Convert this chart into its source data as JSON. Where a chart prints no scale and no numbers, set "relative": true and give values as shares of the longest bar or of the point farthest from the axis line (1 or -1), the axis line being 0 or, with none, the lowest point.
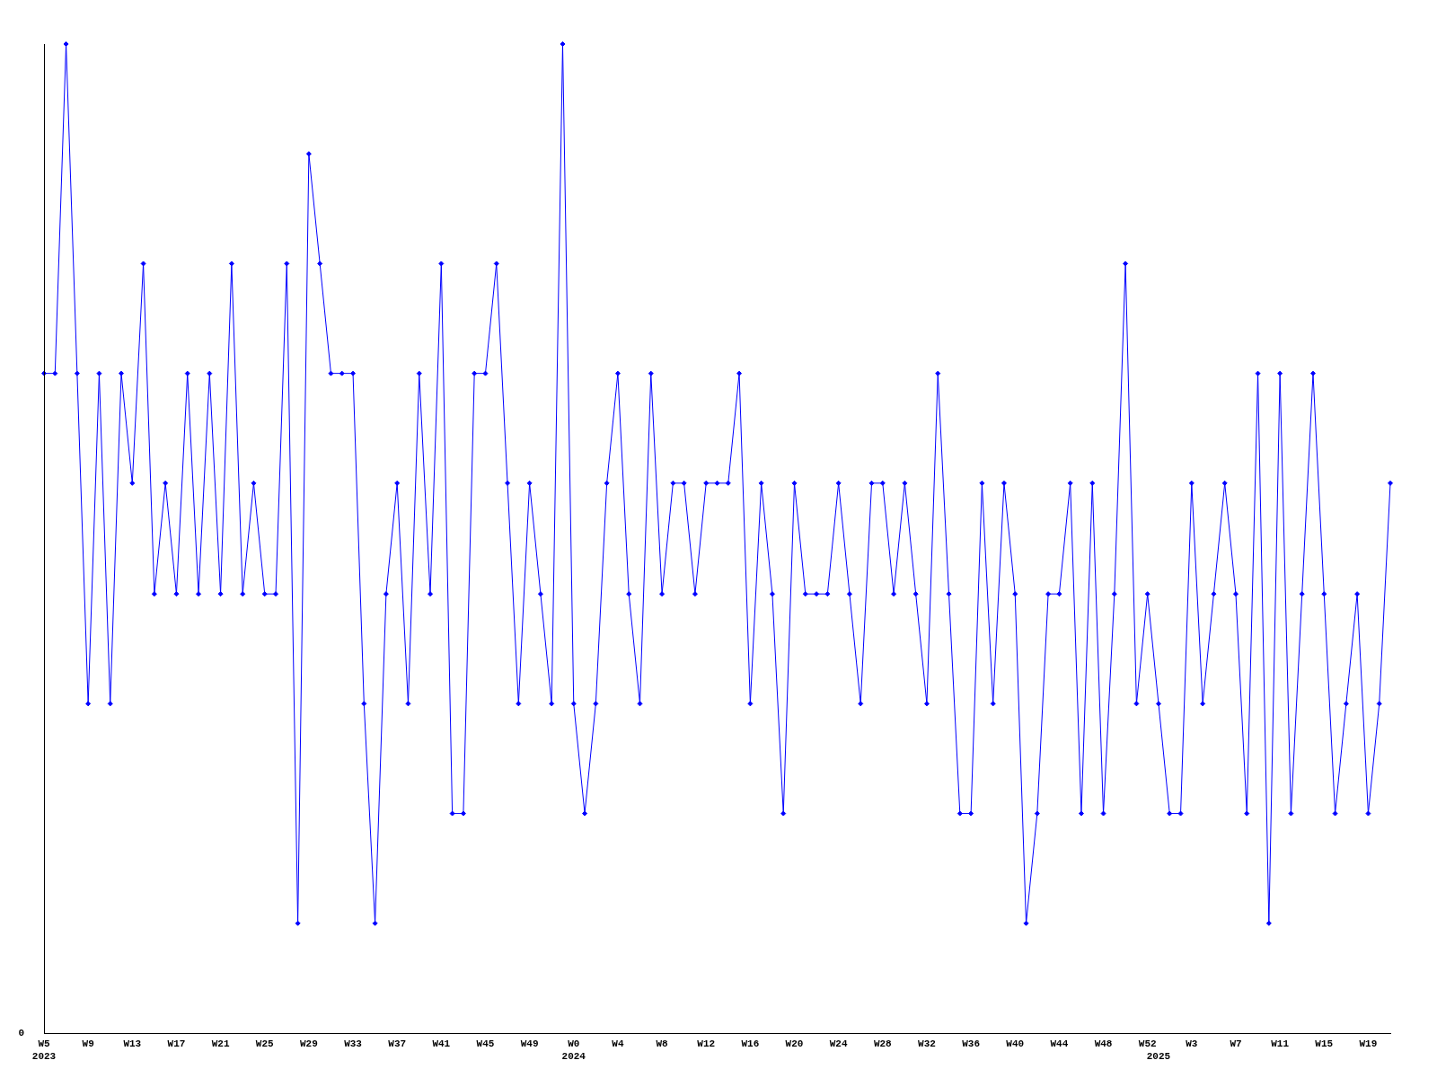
{
  "chart_data": {
    "type": "line",
    "relative": true,
    "color": "#0000ff",
    "marker": "diamond",
    "categories": [
      "W5\n2023",
      null,
      null,
      null,
      "W9",
      null,
      null,
      null,
      "W13",
      null,
      null,
      null,
      "W17",
      null,
      null,
      null,
      "W21",
      null,
      null,
      null,
      "W25",
      null,
      null,
      null,
      "W29",
      null,
      null,
      null,
      "W33",
      null,
      null,
      null,
      "W37",
      null,
      null,
      null,
      "W41",
      null,
      null,
      null,
      "W45",
      null,
      null,
      null,
      "W49",
      null,
      null,
      null,
      "W0\n2024",
      null,
      null,
      null,
      "W4",
      null,
      null,
      null,
      "W8",
      null,
      null,
      null,
      "W12",
      null,
      null,
      null,
      "W16",
      null,
      null,
      null,
      "W20",
      null,
      null,
      null,
      "W24",
      null,
      null,
      null,
      "W28",
      null,
      null,
      null,
      "W32",
      null,
      null,
      null,
      "W36",
      null,
      null,
      null,
      "W40",
      null,
      null,
      null,
      "W44",
      null,
      null,
      null,
      "W48",
      null,
      null,
      null,
      "W52",
      "\n2025",
      null,
      null,
      "W3",
      null,
      null,
      null,
      "W7",
      null,
      null,
      null,
      "W11",
      null,
      null,
      null,
      "W15",
      null,
      null,
      null,
      "W19",
      null,
      null
    ],
    "values": [
      0.667,
      0.667,
      1,
      0.667,
      0.333,
      0.667,
      0.333,
      0.667,
      0.556,
      0.778,
      0.444,
      0.556,
      0.444,
      0.667,
      0.444,
      0.667,
      0.444,
      0.778,
      0.444,
      0.556,
      0.444,
      0.444,
      0.778,
      0.111,
      0.889,
      0.778,
      0.667,
      0.667,
      0.667,
      0.333,
      0.111,
      0.444,
      0.556,
      0.333,
      0.667,
      0.444,
      0.778,
      0.222,
      0.222,
      0.667,
      0.667,
      0.778,
      0.556,
      0.333,
      0.556,
      0.444,
      0.333,
      1,
      0.333,
      0.222,
      0.333,
      0.556,
      0.667,
      0.444,
      0.333,
      0.667,
      0.444,
      0.556,
      0.556,
      0.444,
      0.556,
      0.556,
      0.556,
      0.667,
      0.333,
      0.556,
      0.444,
      0.222,
      0.556,
      0.444,
      0.444,
      0.444,
      0.556,
      0.444,
      0.333,
      0.556,
      0.556,
      0.444,
      0.556,
      0.444,
      0.333,
      0.667,
      0.444,
      0.222,
      0.222,
      0.556,
      0.333,
      0.556,
      0.444,
      0.111,
      0.222,
      0.444,
      0.444,
      0.556,
      0.222,
      0.556,
      0.222,
      0.444,
      0.778,
      0.333,
      0.444,
      0.333,
      0.222,
      0.222,
      0.556,
      0.333,
      0.444,
      0.556,
      0.444,
      0.222,
      0.667,
      0.111,
      0.667,
      0.222,
      0.444,
      0.667,
      0.444,
      0.222,
      0.333,
      0.444,
      0.222,
      0.333,
      0.556
    ],
    "annotations": [
      "0"
    ]
  }
}
